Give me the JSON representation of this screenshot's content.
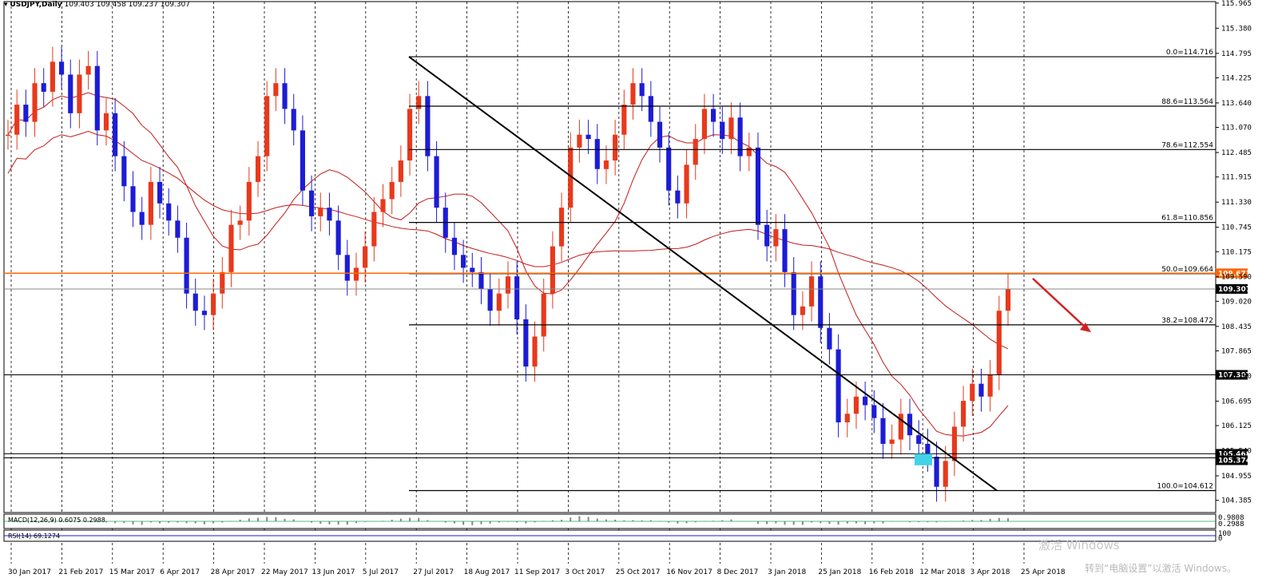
{
  "header": {
    "symbol": "USDJPY,Daily",
    "ohlc": "109.403 109.458 109.237 109.307"
  },
  "indicators": {
    "macd_label": "MACD(12,26,9) 0.6075 0.2988",
    "rsi_label": "RSI(14) 69.1274",
    "macd_values": [
      "0.9808",
      "0.2988"
    ],
    "rsi_values": [
      "100",
      "0"
    ]
  },
  "watermark": {
    "line1": "激活 Windows",
    "line2": "转到“电脑设置”以激活 Windows。"
  },
  "colors": {
    "bull_candle": "#e8391c",
    "bear_candle": "#1c1cd6",
    "ma_line": "#c41a1a",
    "resistance_line": "#ff6600",
    "fib_line": "#000000",
    "arrow": "#d42020",
    "highlight_box": "#41d3e8"
  },
  "chart_data": {
    "type": "candlestick",
    "title": "USDJPY,Daily",
    "ylim": [
      104.1,
      116.0
    ],
    "y_ticks": [
      "115.965",
      "115.380",
      "114.795",
      "114.225",
      "113.640",
      "113.070",
      "112.485",
      "111.915",
      "111.330",
      "110.745",
      "110.175",
      "109.590",
      "109.020",
      "108.435",
      "107.865",
      "107.280",
      "106.695",
      "106.125",
      "105.540",
      "104.955",
      "104.385"
    ],
    "x_ticks": [
      "30 Jan 2017",
      "21 Feb 2017",
      "15 Mar 2017",
      "6 Apr 2017",
      "28 Apr 2017",
      "22 May 2017",
      "13 Jun 2017",
      "5 Jul 2017",
      "27 Jul 2017",
      "18 Aug 2017",
      "11 Sep 2017",
      "3 Oct 2017",
      "25 Oct 2017",
      "16 Nov 2017",
      "8 Dec 2017",
      "3 Jan 2018",
      "25 Jan 2018",
      "16 Feb 2018",
      "12 Mar 2018",
      "3 Apr 2018",
      "25 Apr 2018"
    ],
    "fib_levels": [
      {
        "label": "0.0=114.716",
        "value": 114.716
      },
      {
        "label": "88.6=113.564",
        "value": 113.564
      },
      {
        "label": "78.6=112.554",
        "value": 112.554
      },
      {
        "label": "61.8=110.856",
        "value": 110.856
      },
      {
        "label": "50.0=109.664",
        "value": 109.664
      },
      {
        "label": "38.2=108.472",
        "value": 108.472
      },
      {
        "label": "100.0=104.612",
        "value": 104.612
      }
    ],
    "horizontal_lines": [
      {
        "label": "109.673",
        "value": 109.673
      },
      {
        "label": "109.307",
        "value": 109.307
      },
      {
        "label": "107.307",
        "value": 107.307
      },
      {
        "label": "105.468",
        "value": 105.468
      },
      {
        "label": "105.374",
        "value": 105.374
      }
    ],
    "current_price": 109.307,
    "close_series": [
      112.9,
      113.6,
      113.2,
      114.1,
      113.9,
      114.6,
      114.3,
      113.4,
      114.3,
      114.5,
      113.0,
      113.4,
      112.4,
      111.7,
      111.1,
      110.8,
      111.8,
      111.3,
      110.9,
      110.5,
      109.2,
      108.8,
      108.7,
      109.2,
      109.7,
      110.8,
      110.9,
      111.8,
      112.4,
      113.8,
      114.1,
      113.5,
      113.0,
      111.6,
      111.0,
      111.2,
      110.9,
      110.1,
      109.5,
      109.8,
      110.3,
      111.1,
      111.4,
      111.8,
      112.3,
      113.5,
      113.8,
      112.4,
      111.2,
      110.5,
      110.1,
      109.8,
      109.7,
      109.3,
      108.8,
      109.2,
      109.6,
      108.6,
      107.5,
      108.2,
      109.2,
      110.3,
      111.2,
      112.6,
      112.9,
      112.8,
      112.1,
      112.3,
      112.9,
      113.6,
      114.1,
      113.8,
      113.2,
      112.6,
      111.6,
      111.3,
      112.2,
      112.8,
      113.5,
      113.2,
      112.8,
      113.3,
      112.4,
      112.6,
      110.8,
      110.3,
      110.7,
      109.7,
      108.7,
      108.9,
      109.6,
      108.4,
      107.9,
      106.2,
      106.4,
      106.8,
      106.6,
      106.3,
      105.7,
      105.8,
      106.4,
      105.9,
      105.7,
      105.4,
      104.7,
      105.3,
      106.1,
      106.7,
      107.1,
      106.8,
      107.3,
      108.8,
      109.3
    ]
  }
}
